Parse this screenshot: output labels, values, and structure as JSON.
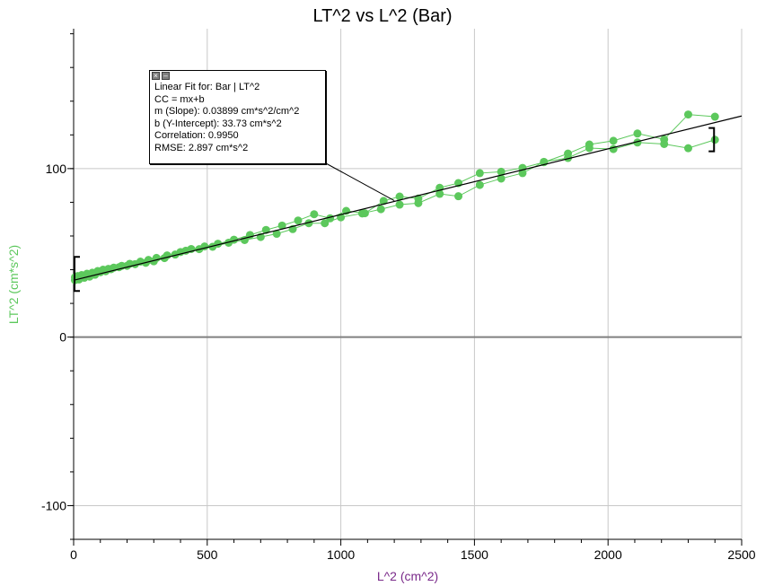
{
  "chart_data": {
    "type": "scatter",
    "title": "LT^2 vs L^2 (Bar)",
    "xlabel": "L^2 (cm^2)",
    "ylabel": "LT^2 (cm*s^2)",
    "xlim": [
      0,
      2500
    ],
    "ylim": [
      -120,
      183
    ],
    "x_ticks": [
      0,
      500,
      1000,
      1500,
      2000,
      2500
    ],
    "y_ticks": [
      -100,
      0,
      100
    ],
    "grid": true,
    "colors": {
      "series": "#5cc85c",
      "fit": "#000000",
      "xlabel": "#7a2a8a",
      "ylabel": "#5cc85c"
    },
    "series": [
      {
        "values_upper": [
          [
            5,
            35.5
          ],
          [
            15,
            36.2
          ],
          [
            30,
            36.8
          ],
          [
            50,
            37.6
          ],
          [
            70,
            38.2
          ],
          [
            90,
            39.2
          ],
          [
            110,
            40.0
          ],
          [
            130,
            40.5
          ],
          [
            150,
            41.2
          ],
          [
            180,
            42.3
          ],
          [
            210,
            43.5
          ],
          [
            250,
            44.8
          ],
          [
            280,
            45.8
          ],
          [
            310,
            47.0
          ],
          [
            350,
            48.5
          ],
          [
            400,
            50.5
          ],
          [
            440,
            52.3
          ],
          [
            490,
            53.8
          ],
          [
            540,
            55.4
          ],
          [
            600,
            57.8
          ],
          [
            660,
            60.6
          ],
          [
            720,
            63.6
          ],
          [
            780,
            66.2
          ],
          [
            840,
            69.2
          ],
          [
            900,
            72.9
          ],
          [
            960,
            70.5
          ],
          [
            1020,
            74.9
          ],
          [
            1090,
            73.5
          ],
          [
            1160,
            80.8
          ],
          [
            1220,
            83.4
          ],
          [
            1290,
            82.2
          ],
          [
            1370,
            88.6
          ],
          [
            1440,
            91.4
          ],
          [
            1520,
            97.3
          ],
          [
            1600,
            98.1
          ],
          [
            1680,
            100.4
          ],
          [
            1760,
            103.8
          ],
          [
            1850,
            108.9
          ],
          [
            1930,
            114.3
          ],
          [
            2020,
            116.5
          ],
          [
            2110,
            120.8
          ],
          [
            2210,
            117.3
          ],
          [
            2300,
            132.1
          ],
          [
            2400,
            130.8
          ]
        ],
        "values_lower": [
          [
            5,
            33.8
          ],
          [
            20,
            34.2
          ],
          [
            40,
            35.2
          ],
          [
            60,
            35.9
          ],
          [
            80,
            37.0
          ],
          [
            100,
            38.5
          ],
          [
            120,
            39.1
          ],
          [
            140,
            40.3
          ],
          [
            170,
            41.5
          ],
          [
            200,
            42.3
          ],
          [
            230,
            43.3
          ],
          [
            270,
            44.1
          ],
          [
            300,
            45.0
          ],
          [
            340,
            46.9
          ],
          [
            380,
            49.0
          ],
          [
            420,
            51.3
          ],
          [
            470,
            52.2
          ],
          [
            520,
            53.6
          ],
          [
            580,
            56.0
          ],
          [
            640,
            57.6
          ],
          [
            700,
            59.4
          ],
          [
            760,
            61.3
          ],
          [
            820,
            64.1
          ],
          [
            880,
            67.6
          ],
          [
            940,
            67.6
          ],
          [
            1000,
            71.1
          ],
          [
            1080,
            73.4
          ],
          [
            1150,
            75.9
          ],
          [
            1220,
            78.6
          ],
          [
            1290,
            79.5
          ],
          [
            1370,
            85.0
          ],
          [
            1440,
            83.6
          ],
          [
            1520,
            90.3
          ],
          [
            1600,
            94.1
          ],
          [
            1680,
            97.3
          ],
          [
            1760,
            104.0
          ],
          [
            1850,
            106.3
          ],
          [
            1930,
            112.2
          ],
          [
            2020,
            111.6
          ],
          [
            2110,
            115.5
          ],
          [
            2210,
            114.6
          ],
          [
            2300,
            112.1
          ],
          [
            2400,
            117.1
          ]
        ]
      }
    ],
    "fit": {
      "slope": 0.03899,
      "intercept": 33.73,
      "x_range": [
        0,
        2500
      ],
      "bracket_range": [
        0,
        2400
      ]
    },
    "annotation": {
      "lines": [
        "Linear Fit for: Bar | LT^2",
        "CC = mx+b",
        "m (Slope): 0.03899 cm*s^2/cm^2",
        "b (Y-Intercept): 33.73 cm*s^2",
        "Correlation: 0.9950",
        "RMSE: 2.897 cm*s^2"
      ],
      "anchor": [
        1200,
        81.0
      ]
    }
  }
}
